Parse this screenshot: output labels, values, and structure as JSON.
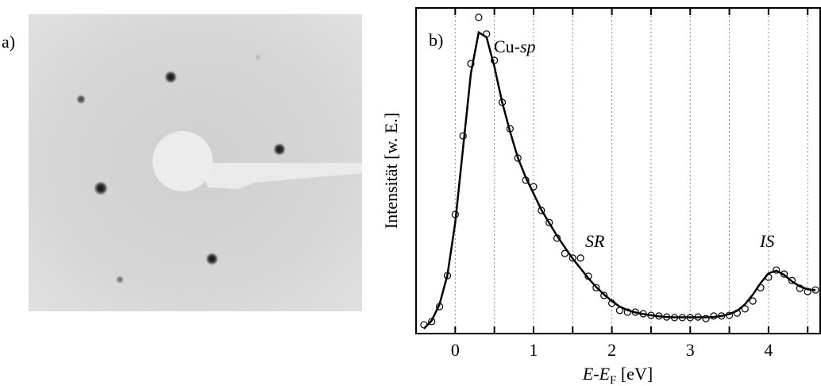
{
  "chart_data": {
    "type": "line",
    "panel_labels": [
      "a)",
      "b)"
    ],
    "ylabel": "Intensität [w. E.]",
    "xlabel": "E-EF [eV]",
    "annotations": [
      "Cu-sp",
      "SR",
      "IS"
    ],
    "x": [
      -0.4,
      -0.3,
      -0.2,
      -0.1,
      0,
      0.1,
      0.2,
      0.3,
      0.4,
      0.5,
      0.6,
      0.7,
      0.8,
      0.9,
      1.0,
      1.1,
      1.2,
      1.3,
      1.4,
      1.5,
      1.6,
      1.7,
      1.8,
      1.9,
      2.0,
      2.1,
      2.2,
      2.3,
      2.4,
      2.5,
      2.6,
      2.7,
      2.8,
      2.9,
      3.0,
      3.1,
      3.2,
      3.3,
      3.4,
      3.5,
      3.6,
      3.7,
      3.8,
      3.9,
      4.0,
      4.1,
      4.2,
      4.3,
      4.4,
      4.5,
      4.6
    ],
    "series": [
      {
        "style": "markers",
        "color": "#000000",
        "values": [
          2.7,
          3.7,
          8.3,
          17.8,
          36.6,
          60.7,
          82.9,
          97.1,
          92.0,
          83.9,
          71.0,
          62.9,
          53.9,
          47.1,
          45.1,
          37.8,
          34.1,
          29.3,
          24.6,
          23.2,
          23.2,
          17.6,
          14.1,
          11.7,
          9.3,
          7.1,
          6.6,
          6.6,
          6.1,
          5.6,
          5.4,
          5.1,
          4.9,
          4.9,
          4.9,
          5.1,
          4.6,
          5.4,
          5.4,
          5.6,
          6.3,
          7.6,
          10.0,
          14.1,
          17.3,
          19.5,
          18.3,
          16.3,
          13.9,
          12.9,
          13.4
        ]
      },
      {
        "style": "line",
        "color": "#000000",
        "values": [
          1.5,
          4,
          9,
          18,
          34,
          57,
          80,
          92.5,
          91,
          82,
          71,
          62,
          54,
          48,
          43,
          38,
          34,
          30,
          26.5,
          23,
          20,
          17,
          14.3,
          12,
          10,
          8.3,
          7.2,
          6.5,
          6,
          5.6,
          5.3,
          5.1,
          5,
          5,
          5,
          5,
          5,
          5.1,
          5.4,
          6,
          7,
          9,
          12,
          15.5,
          18.5,
          19.3,
          18,
          16,
          14.5,
          13.6,
          13.3
        ]
      }
    ],
    "xlim": [
      -0.5,
      4.66
    ],
    "ylim": [
      0,
      100
    ],
    "xticks": [
      0,
      1,
      2,
      3,
      4
    ],
    "xminorticks": [
      0.5,
      1.5,
      2.5,
      3.5,
      4.5
    ],
    "grid": true
  }
}
